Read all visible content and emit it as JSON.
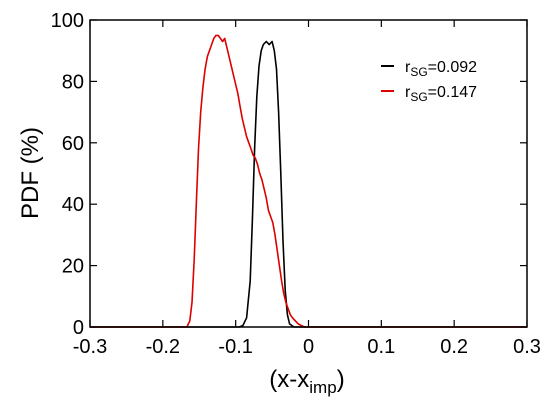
{
  "chart_data": {
    "type": "line",
    "xlabel_main": "(x-x",
    "xlabel_sub": "imp",
    "xlabel_close": ")",
    "ylabel": "PDF (%)",
    "xlim": [
      -0.3,
      0.3
    ],
    "ylim": [
      0,
      100
    ],
    "x_ticks": [
      -0.3,
      -0.2,
      -0.1,
      0,
      0.1,
      0.2,
      0.3
    ],
    "x_tick_labels": [
      "-0.3",
      "-0.2",
      "-0.1",
      "0",
      "0.1",
      "0.2",
      "0.3"
    ],
    "y_ticks": [
      0,
      20,
      40,
      60,
      80,
      100
    ],
    "y_tick_labels": [
      "0",
      "20",
      "40",
      "60",
      "80",
      "100"
    ],
    "grid": false,
    "legend_position": "top-right",
    "series": [
      {
        "name_prefix": "r",
        "name_sub": "SG",
        "name_value": "=0.092",
        "color": "#000000",
        "points": [
          [
            -0.3,
            0
          ],
          [
            -0.095,
            0
          ],
          [
            -0.09,
            0.5
          ],
          [
            -0.085,
            3
          ],
          [
            -0.08,
            15
          ],
          [
            -0.077,
            35
          ],
          [
            -0.074,
            58
          ],
          [
            -0.071,
            75
          ],
          [
            -0.068,
            85
          ],
          [
            -0.065,
            90
          ],
          [
            -0.062,
            92
          ],
          [
            -0.058,
            93
          ],
          [
            -0.054,
            92
          ],
          [
            -0.05,
            93
          ],
          [
            -0.047,
            90
          ],
          [
            -0.044,
            84
          ],
          [
            -0.041,
            70
          ],
          [
            -0.038,
            50
          ],
          [
            -0.035,
            28
          ],
          [
            -0.032,
            12
          ],
          [
            -0.029,
            4
          ],
          [
            -0.026,
            1
          ],
          [
            -0.02,
            0
          ],
          [
            0.3,
            0
          ]
        ]
      },
      {
        "name_prefix": "r",
        "name_sub": "SG",
        "name_value": "=0.147",
        "color": "#dd0000",
        "points": [
          [
            -0.3,
            0
          ],
          [
            -0.167,
            0
          ],
          [
            -0.163,
            2
          ],
          [
            -0.16,
            8
          ],
          [
            -0.157,
            22
          ],
          [
            -0.154,
            40
          ],
          [
            -0.151,
            58
          ],
          [
            -0.148,
            70
          ],
          [
            -0.145,
            78
          ],
          [
            -0.142,
            84
          ],
          [
            -0.139,
            88
          ],
          [
            -0.136,
            90
          ],
          [
            -0.133,
            92
          ],
          [
            -0.13,
            94
          ],
          [
            -0.127,
            95
          ],
          [
            -0.124,
            95
          ],
          [
            -0.121,
            94
          ],
          [
            -0.118,
            93
          ],
          [
            -0.115,
            94
          ],
          [
            -0.112,
            91
          ],
          [
            -0.109,
            88
          ],
          [
            -0.106,
            85
          ],
          [
            -0.103,
            82
          ],
          [
            -0.1,
            79
          ],
          [
            -0.097,
            76
          ],
          [
            -0.094,
            72
          ],
          [
            -0.091,
            68
          ],
          [
            -0.088,
            65
          ],
          [
            -0.085,
            62
          ],
          [
            -0.082,
            60
          ],
          [
            -0.079,
            58
          ],
          [
            -0.076,
            56
          ],
          [
            -0.073,
            55
          ],
          [
            -0.07,
            53
          ],
          [
            -0.067,
            50
          ],
          [
            -0.064,
            48
          ],
          [
            -0.061,
            45
          ],
          [
            -0.058,
            42
          ],
          [
            -0.055,
            38
          ],
          [
            -0.052,
            36
          ],
          [
            -0.049,
            34
          ],
          [
            -0.046,
            30
          ],
          [
            -0.043,
            25
          ],
          [
            -0.04,
            20
          ],
          [
            -0.037,
            15
          ],
          [
            -0.034,
            11
          ],
          [
            -0.031,
            8
          ],
          [
            -0.028,
            6
          ],
          [
            -0.025,
            4
          ],
          [
            -0.022,
            3
          ],
          [
            -0.018,
            2
          ],
          [
            -0.014,
            1
          ],
          [
            -0.01,
            0.5
          ],
          [
            -0.005,
            0
          ],
          [
            0.3,
            0
          ]
        ]
      }
    ]
  }
}
